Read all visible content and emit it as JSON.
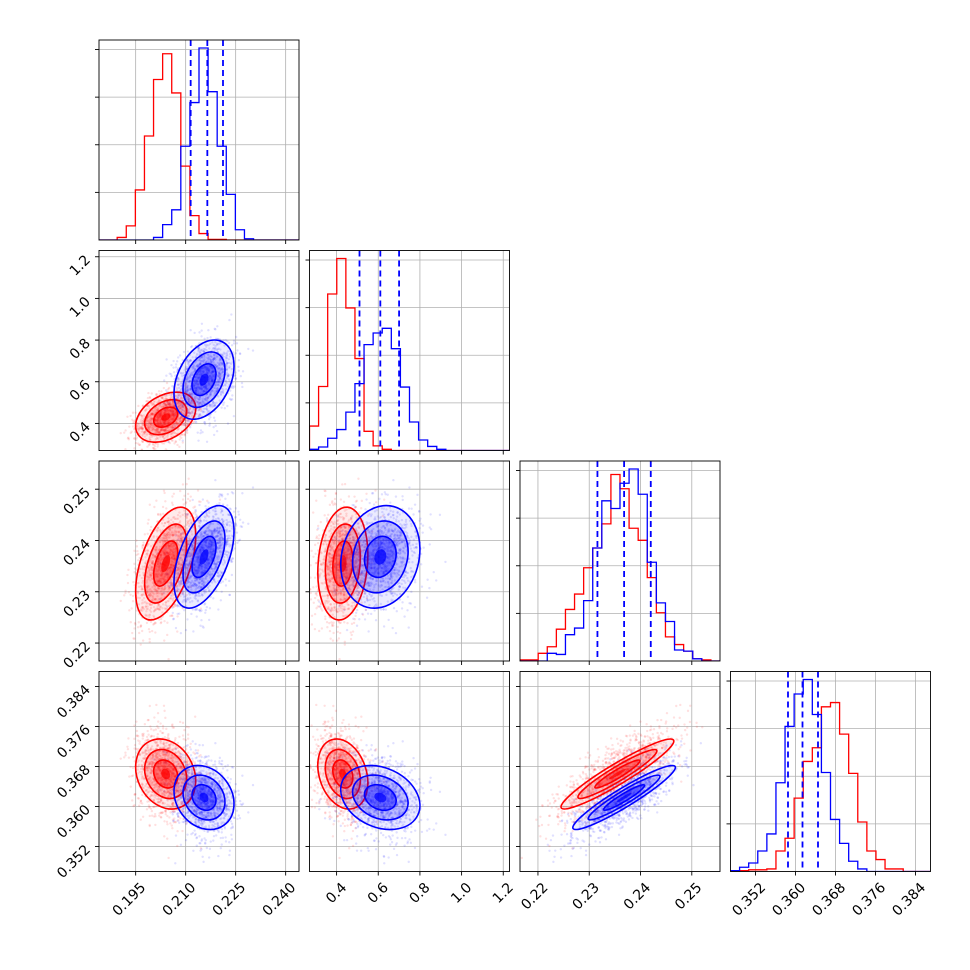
{
  "chart_data": {
    "type": "corner",
    "colors": {
      "series_a": "#ff0000",
      "series_b": "#0000ff",
      "grid": "#b0b0b0"
    },
    "parameters": [
      {
        "range": [
          0.184,
          0.244
        ],
        "ticks": [
          "0.195",
          "0.210",
          "0.225",
          "0.240"
        ],
        "tick_values": [
          0.195,
          0.21,
          0.225,
          0.24
        ]
      },
      {
        "range": [
          0.27,
          1.23
        ],
        "ticks": [
          "0.4",
          "0.6",
          "0.8",
          "1.0",
          "1.2"
        ],
        "tick_values": [
          0.4,
          0.6,
          0.8,
          1.0,
          1.2
        ]
      },
      {
        "range": [
          0.2165,
          0.2555
        ],
        "ticks": [
          "0.22",
          "0.23",
          "0.24",
          "0.25"
        ],
        "tick_values": [
          0.22,
          0.23,
          0.24,
          0.25
        ]
      },
      {
        "range": [
          0.347,
          0.387
        ],
        "ticks": [
          "0.352",
          "0.360",
          "0.368",
          "0.376",
          "0.384"
        ],
        "tick_values": [
          0.352,
          0.36,
          0.368,
          0.376,
          0.384
        ]
      }
    ],
    "series": [
      {
        "color": "red",
        "means": [
          0.204,
          0.43,
          0.2355,
          0.3665
        ],
        "sds": [
          0.0045,
          0.06,
          0.0055,
          0.0035
        ]
      },
      {
        "color": "blue",
        "means": [
          0.2155,
          0.61,
          0.2368,
          0.3618
        ],
        "sds": [
          0.0045,
          0.095,
          0.005,
          0.0032
        ]
      }
    ],
    "correlations": {
      "0-1": 0.35,
      "0-2": 0.5,
      "0-3": -0.2,
      "1-2": 0.15,
      "1-3": -0.25,
      "2-3": 0.94
    },
    "quantiles": [
      {
        "param": 0,
        "values": [
          0.2115,
          0.2165,
          0.2212
        ]
      },
      {
        "param": 1,
        "values": [
          0.51,
          0.61,
          0.7
        ]
      },
      {
        "param": 2,
        "values": [
          0.2316,
          0.2368,
          0.242
        ]
      },
      {
        "param": 3,
        "values": [
          0.3585,
          0.3614,
          0.3645
        ]
      }
    ],
    "quantile_color": "#0000ff",
    "grid": true,
    "histograms": "step",
    "contours": "filled 2D density contours with scatter points"
  }
}
